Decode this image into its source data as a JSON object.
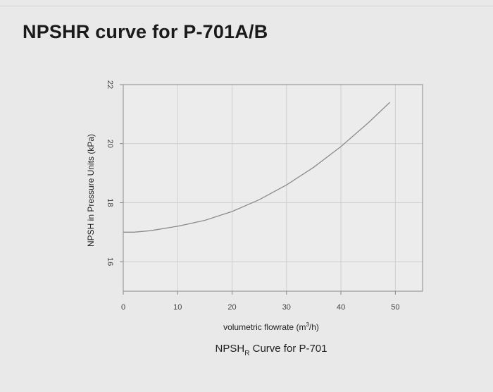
{
  "page": {
    "title": "NPSHR curve for P-701A/B"
  },
  "chart_data": {
    "type": "line",
    "title": "",
    "xlabel": {
      "main": "volumetric flowrate (m",
      "sup": "3",
      "end": "/h)"
    },
    "ylabel": "NPSH in Pressure Units (kPa)",
    "caption": {
      "main": "NPSH",
      "sub": "R",
      "end": " Curve for P-701"
    },
    "xlim": [
      0,
      55
    ],
    "ylim": [
      15,
      22
    ],
    "x_ticks": [
      0,
      10,
      20,
      30,
      40,
      50
    ],
    "y_ticks": [
      16,
      18,
      20,
      22
    ],
    "grid": true,
    "colors": {
      "line": "#8c8c8c",
      "grid": "#cfcfcf",
      "frame": "#8a8a8a",
      "plot_bg": "#ececec"
    },
    "series": [
      {
        "x": [
          0,
          2,
          5,
          10,
          15,
          20,
          25,
          30,
          35,
          40,
          45,
          49
        ],
        "y": [
          17.0,
          17.0,
          17.05,
          17.2,
          17.4,
          17.7,
          18.1,
          18.6,
          19.2,
          19.9,
          20.7,
          21.4
        ]
      }
    ]
  }
}
